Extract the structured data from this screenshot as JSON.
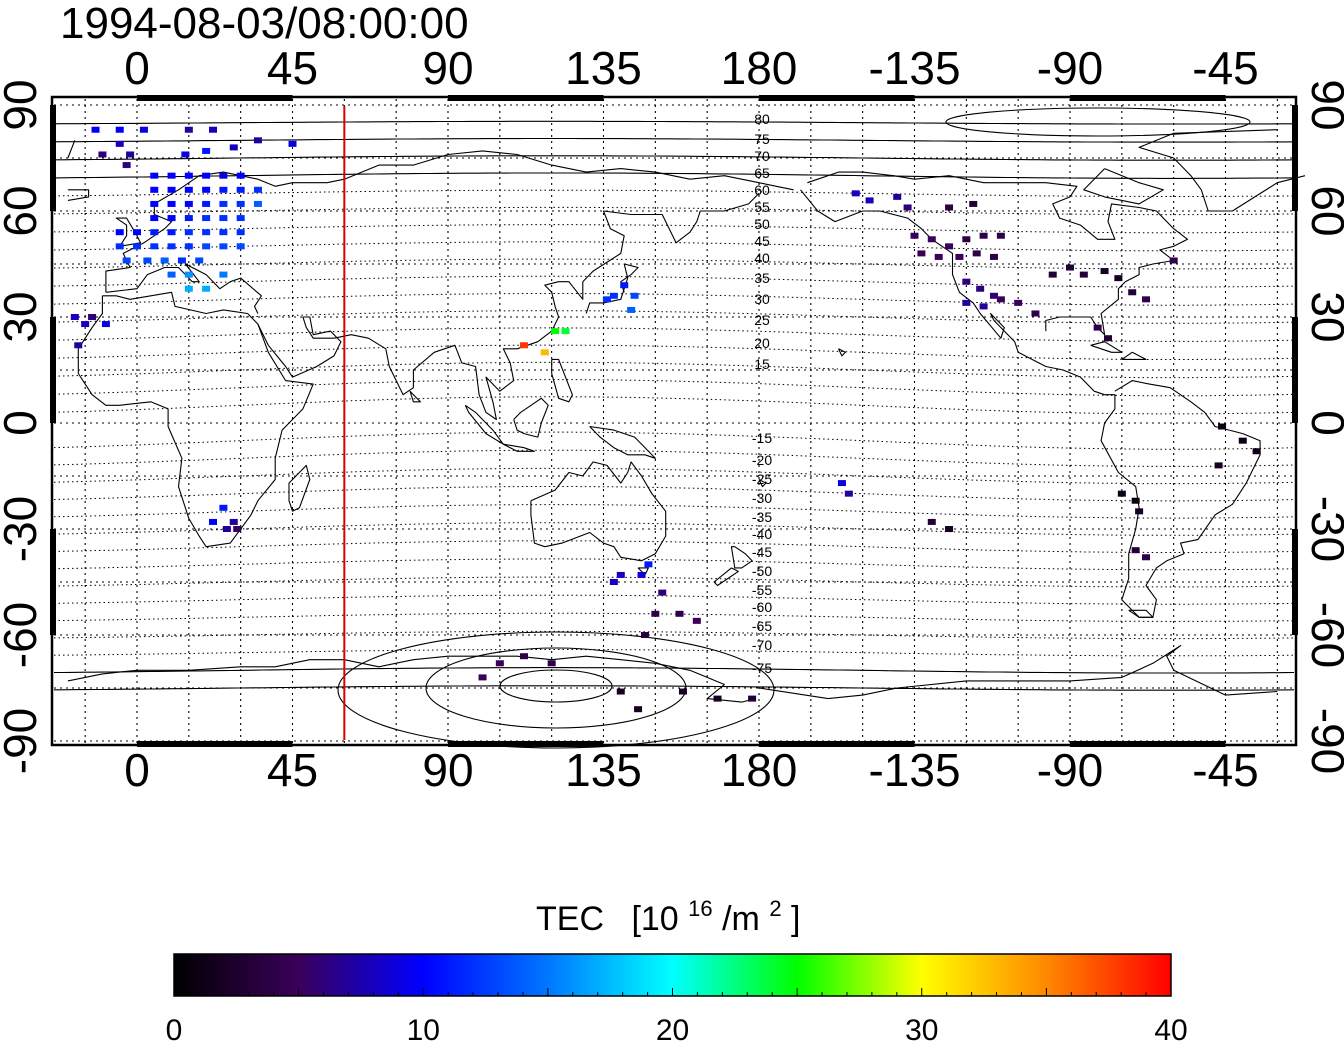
{
  "title": "1994-08-03/08:00:00",
  "lon_ticks": [
    "0",
    "45",
    "90",
    "135",
    "180",
    "-135",
    "-90",
    "-45"
  ],
  "lat_ticks": [
    "90",
    "60",
    "30",
    "0",
    "-30",
    "-60",
    "-90"
  ],
  "magnetic_latitude_labels": {
    "north": [
      "80",
      "75",
      "70",
      "65",
      "60",
      "55",
      "50",
      "45",
      "40",
      "35",
      "30",
      "25",
      "20",
      "15"
    ],
    "south": [
      "-15",
      "-20",
      "-25",
      "-30",
      "-35",
      "-40",
      "-45",
      "-50",
      "-55",
      "-60",
      "-65",
      "-70",
      "-75"
    ]
  },
  "sun_meridian_lon": 60,
  "colorbar": {
    "title": "TEC",
    "unit_base": "[10",
    "unit_exp": "16",
    "unit_mid": "/m",
    "unit_exp2": "2",
    "unit_end": "]",
    "min": 0,
    "max": 40,
    "tick_labels": [
      "0",
      "10",
      "20",
      "30",
      "40"
    ]
  },
  "colors": {
    "sun_meridian": "#dd0000",
    "grid": "#000000"
  },
  "observations": [
    {
      "lon": -12,
      "lat": 83,
      "v": 10
    },
    {
      "lon": -5,
      "lat": 83,
      "v": 10
    },
    {
      "lon": 2,
      "lat": 83,
      "v": 9
    },
    {
      "lon": -5,
      "lat": 79,
      "v": 8
    },
    {
      "lon": -10,
      "lat": 76,
      "v": 6
    },
    {
      "lon": -2,
      "lat": 76,
      "v": 7
    },
    {
      "lon": -3,
      "lat": 73,
      "v": 6
    },
    {
      "lon": 15,
      "lat": 83,
      "v": 7
    },
    {
      "lon": 22,
      "lat": 83,
      "v": 8
    },
    {
      "lon": 35,
      "lat": 80,
      "v": 7
    },
    {
      "lon": 45,
      "lat": 79,
      "v": 9
    },
    {
      "lon": 28,
      "lat": 78,
      "v": 8
    },
    {
      "lon": 20,
      "lat": 77,
      "v": 11
    },
    {
      "lon": 14,
      "lat": 76,
      "v": 9
    },
    {
      "lon": 5,
      "lat": 70,
      "v": 10
    },
    {
      "lon": 10,
      "lat": 70,
      "v": 10
    },
    {
      "lon": 15,
      "lat": 70,
      "v": 10
    },
    {
      "lon": 20,
      "lat": 70,
      "v": 10
    },
    {
      "lon": 25,
      "lat": 70,
      "v": 9
    },
    {
      "lon": 30,
      "lat": 70,
      "v": 10
    },
    {
      "lon": 5,
      "lat": 66,
      "v": 10
    },
    {
      "lon": 10,
      "lat": 66,
      "v": 10
    },
    {
      "lon": 15,
      "lat": 66,
      "v": 10
    },
    {
      "lon": 20,
      "lat": 66,
      "v": 10
    },
    {
      "lon": 25,
      "lat": 66,
      "v": 11
    },
    {
      "lon": 30,
      "lat": 66,
      "v": 11
    },
    {
      "lon": 35,
      "lat": 66,
      "v": 12
    },
    {
      "lon": 5,
      "lat": 62,
      "v": 10
    },
    {
      "lon": 10,
      "lat": 62,
      "v": 10
    },
    {
      "lon": 15,
      "lat": 62,
      "v": 10
    },
    {
      "lon": 20,
      "lat": 62,
      "v": 11
    },
    {
      "lon": 25,
      "lat": 62,
      "v": 12
    },
    {
      "lon": 30,
      "lat": 62,
      "v": 12
    },
    {
      "lon": 35,
      "lat": 62,
      "v": 14
    },
    {
      "lon": 5,
      "lat": 58,
      "v": 10
    },
    {
      "lon": 10,
      "lat": 58,
      "v": 10
    },
    {
      "lon": 15,
      "lat": 58,
      "v": 11
    },
    {
      "lon": 20,
      "lat": 58,
      "v": 12
    },
    {
      "lon": 25,
      "lat": 58,
      "v": 12
    },
    {
      "lon": 30,
      "lat": 58,
      "v": 12
    },
    {
      "lon": -5,
      "lat": 54,
      "v": 10
    },
    {
      "lon": 0,
      "lat": 54,
      "v": 10
    },
    {
      "lon": 5,
      "lat": 54,
      "v": 11
    },
    {
      "lon": 10,
      "lat": 54,
      "v": 11
    },
    {
      "lon": 15,
      "lat": 54,
      "v": 12
    },
    {
      "lon": 20,
      "lat": 54,
      "v": 12
    },
    {
      "lon": 25,
      "lat": 54,
      "v": 12
    },
    {
      "lon": 30,
      "lat": 54,
      "v": 12
    },
    {
      "lon": -5,
      "lat": 50,
      "v": 12
    },
    {
      "lon": 0,
      "lat": 50,
      "v": 12
    },
    {
      "lon": 5,
      "lat": 50,
      "v": 12
    },
    {
      "lon": 10,
      "lat": 50,
      "v": 12
    },
    {
      "lon": 15,
      "lat": 50,
      "v": 12
    },
    {
      "lon": 20,
      "lat": 50,
      "v": 13
    },
    {
      "lon": 25,
      "lat": 50,
      "v": 13
    },
    {
      "lon": 30,
      "lat": 50,
      "v": 13
    },
    {
      "lon": -3,
      "lat": 46,
      "v": 13
    },
    {
      "lon": 3,
      "lat": 46,
      "v": 13
    },
    {
      "lon": 8,
      "lat": 46,
      "v": 14
    },
    {
      "lon": 13,
      "lat": 46,
      "v": 12
    },
    {
      "lon": 18,
      "lat": 46,
      "v": 13
    },
    {
      "lon": 10,
      "lat": 42,
      "v": 14
    },
    {
      "lon": 15,
      "lat": 42,
      "v": 16
    },
    {
      "lon": 25,
      "lat": 42,
      "v": 15
    },
    {
      "lon": 15,
      "lat": 38,
      "v": 17
    },
    {
      "lon": 20,
      "lat": 38,
      "v": 17
    },
    {
      "lon": -18,
      "lat": 30,
      "v": 8
    },
    {
      "lon": -15,
      "lat": 28,
      "v": 8
    },
    {
      "lon": -13,
      "lat": 30,
      "v": 6
    },
    {
      "lon": -9,
      "lat": 28,
      "v": 9
    },
    {
      "lon": -17,
      "lat": 22,
      "v": 7
    },
    {
      "lon": 25,
      "lat": -24,
      "v": 11
    },
    {
      "lon": 28,
      "lat": -28,
      "v": 7
    },
    {
      "lon": 22,
      "lat": -28,
      "v": 10
    },
    {
      "lon": 26,
      "lat": -30,
      "v": 7
    },
    {
      "lon": 29,
      "lat": -30,
      "v": 5
    },
    {
      "lon": 138,
      "lat": 36,
      "v": 12
    },
    {
      "lon": 141,
      "lat": 39,
      "v": 11
    },
    {
      "lon": 144,
      "lat": 36,
      "v": 13
    },
    {
      "lon": 143,
      "lat": 32,
      "v": 14
    },
    {
      "lon": 136,
      "lat": 35,
      "v": 12
    },
    {
      "lon": 121,
      "lat": 26,
      "v": 25
    },
    {
      "lon": 124,
      "lat": 26,
      "v": 24
    },
    {
      "lon": 112,
      "lat": 22,
      "v": 38
    },
    {
      "lon": 118,
      "lat": 20,
      "v": 33
    },
    {
      "lon": 148,
      "lat": -40,
      "v": 11
    },
    {
      "lon": 146,
      "lat": -43,
      "v": 9
    },
    {
      "lon": 140,
      "lat": -43,
      "v": 8
    },
    {
      "lon": 138,
      "lat": -45,
      "v": 8
    },
    {
      "lon": 152,
      "lat": -48,
      "v": 6
    },
    {
      "lon": 150,
      "lat": -54,
      "v": 4
    },
    {
      "lon": 157,
      "lat": -54,
      "v": 4
    },
    {
      "lon": 162,
      "lat": -56,
      "v": 5
    },
    {
      "lon": 147,
      "lat": -60,
      "v": 3
    },
    {
      "lon": 112,
      "lat": -66,
      "v": 4
    },
    {
      "lon": 105,
      "lat": -68,
      "v": 5
    },
    {
      "lon": 120,
      "lat": -68,
      "v": 4
    },
    {
      "lon": 100,
      "lat": -72,
      "v": 5
    },
    {
      "lon": 140,
      "lat": -76,
      "v": 2
    },
    {
      "lon": 158,
      "lat": -76,
      "v": 2
    },
    {
      "lon": 168,
      "lat": -78,
      "v": 2
    },
    {
      "lon": 178,
      "lat": -78,
      "v": 3
    },
    {
      "lon": 145,
      "lat": -81,
      "v": 2
    },
    {
      "lon": -156,
      "lat": -17,
      "v": 9
    },
    {
      "lon": -154,
      "lat": -20,
      "v": 7
    },
    {
      "lon": -152,
      "lat": 65,
      "v": 8
    },
    {
      "lon": -148,
      "lat": 63,
      "v": 8
    },
    {
      "lon": -140,
      "lat": 64,
      "v": 7
    },
    {
      "lon": -137,
      "lat": 61,
      "v": 6
    },
    {
      "lon": -125,
      "lat": 61,
      "v": 4
    },
    {
      "lon": -118,
      "lat": 62,
      "v": 3
    },
    {
      "lon": -135,
      "lat": 53,
      "v": 5
    },
    {
      "lon": -130,
      "lat": 52,
      "v": 5
    },
    {
      "lon": -125,
      "lat": 50,
      "v": 5
    },
    {
      "lon": -120,
      "lat": 52,
      "v": 4
    },
    {
      "lon": -115,
      "lat": 53,
      "v": 4
    },
    {
      "lon": -110,
      "lat": 53,
      "v": 4
    },
    {
      "lon": -133,
      "lat": 48,
      "v": 5
    },
    {
      "lon": -128,
      "lat": 47,
      "v": 5
    },
    {
      "lon": -122,
      "lat": 47,
      "v": 5
    },
    {
      "lon": -117,
      "lat": 48,
      "v": 4
    },
    {
      "lon": -112,
      "lat": 47,
      "v": 4
    },
    {
      "lon": -120,
      "lat": 40,
      "v": 6
    },
    {
      "lon": -116,
      "lat": 38,
      "v": 6
    },
    {
      "lon": -112,
      "lat": 36,
      "v": 6
    },
    {
      "lon": -120,
      "lat": 34,
      "v": 7
    },
    {
      "lon": -115,
      "lat": 33,
      "v": 7
    },
    {
      "lon": -110,
      "lat": 35,
      "v": 5
    },
    {
      "lon": -105,
      "lat": 34,
      "v": 5
    },
    {
      "lon": -100,
      "lat": 31,
      "v": 4
    },
    {
      "lon": -95,
      "lat": 42,
      "v": 3
    },
    {
      "lon": -90,
      "lat": 44,
      "v": 3
    },
    {
      "lon": -86,
      "lat": 42,
      "v": 3
    },
    {
      "lon": -80,
      "lat": 43,
      "v": 2
    },
    {
      "lon": -76,
      "lat": 41,
      "v": 2
    },
    {
      "lon": -72,
      "lat": 37,
      "v": 3
    },
    {
      "lon": -68,
      "lat": 35,
      "v": 4
    },
    {
      "lon": -60,
      "lat": 46,
      "v": 4
    },
    {
      "lon": -82,
      "lat": 27,
      "v": 4
    },
    {
      "lon": -79,
      "lat": 24,
      "v": 3
    },
    {
      "lon": -46,
      "lat": -1,
      "v": 1
    },
    {
      "lon": -40,
      "lat": -5,
      "v": 1
    },
    {
      "lon": -36,
      "lat": -8,
      "v": 1
    },
    {
      "lon": -47,
      "lat": -12,
      "v": 2
    },
    {
      "lon": -75,
      "lat": -20,
      "v": 1
    },
    {
      "lon": -71,
      "lat": -22,
      "v": 1
    },
    {
      "lon": -70,
      "lat": -25,
      "v": 2
    },
    {
      "lon": -130,
      "lat": -28,
      "v": 3
    },
    {
      "lon": -125,
      "lat": -30,
      "v": 2
    },
    {
      "lon": -71,
      "lat": -36,
      "v": 3
    },
    {
      "lon": -68,
      "lat": -38,
      "v": 4
    }
  ]
}
